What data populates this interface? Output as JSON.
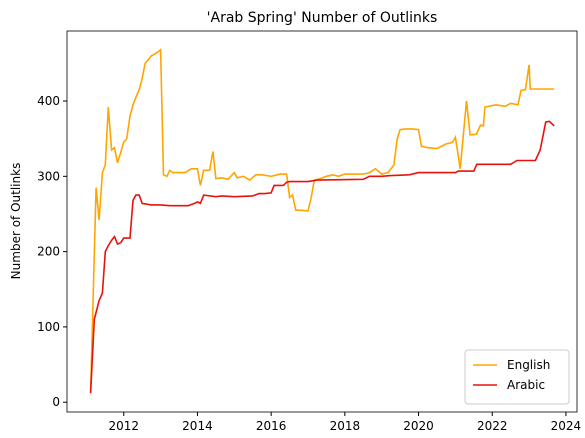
{
  "chart_data": {
    "type": "line",
    "title": "'Arab Spring' Number of Outlinks",
    "y_label": "Number of Outlinks",
    "xlim": [
      2010.46,
      2024.3
    ],
    "xticks": [
      2012,
      2014,
      2016,
      2018,
      2020,
      2022,
      2024
    ],
    "ylim": [
      -13,
      493
    ],
    "yticks": [
      0,
      100,
      200,
      300,
      400
    ],
    "legend": "lower right",
    "series": [
      {
        "name": "English",
        "color": "#ffa500",
        "x": [
          2011.1,
          2011.25,
          2011.33,
          2011.42,
          2011.5,
          2011.58,
          2011.67,
          2011.75,
          2011.83,
          2011.92,
          2012.0,
          2012.08,
          2012.17,
          2012.25,
          2012.33,
          2012.42,
          2012.5,
          2012.58,
          2012.67,
          2012.75,
          2012.83,
          2012.92,
          2013.0,
          2013.08,
          2013.17,
          2013.25,
          2013.33,
          2013.5,
          2013.67,
          2013.83,
          2014.0,
          2014.08,
          2014.17,
          2014.33,
          2014.42,
          2014.5,
          2014.67,
          2014.83,
          2015.0,
          2015.08,
          2015.25,
          2015.42,
          2015.58,
          2015.75,
          2016.0,
          2016.25,
          2016.42,
          2016.5,
          2016.58,
          2016.67,
          2016.83,
          2017.0,
          2017.08,
          2017.17,
          2017.33,
          2017.5,
          2017.67,
          2017.83,
          2018.0,
          2018.25,
          2018.5,
          2018.67,
          2018.83,
          2019.0,
          2019.17,
          2019.33,
          2019.42,
          2019.5,
          2019.67,
          2019.83,
          2020.0,
          2020.08,
          2020.25,
          2020.5,
          2020.75,
          2020.92,
          2021.0,
          2021.13,
          2021.3,
          2021.4,
          2021.57,
          2021.68,
          2021.76,
          2021.8,
          2022.1,
          2022.35,
          2022.5,
          2022.7,
          2022.78,
          2022.9,
          2023.0,
          2023.03,
          2023.68
        ],
        "values": [
          13,
          285,
          242,
          305,
          315,
          392,
          335,
          338,
          318,
          332,
          345,
          350,
          380,
          395,
          405,
          415,
          430,
          450,
          455,
          460,
          462,
          465,
          468,
          302,
          300,
          308,
          305,
          305,
          305,
          310,
          310,
          288,
          308,
          308,
          333,
          297,
          298,
          296,
          305,
          298,
          300,
          295,
          302,
          302,
          300,
          303,
          303,
          272,
          275,
          255,
          255,
          254,
          270,
          295,
          297,
          300,
          302,
          300,
          303,
          303,
          303,
          305,
          310,
          303,
          305,
          315,
          350,
          362,
          363,
          363,
          362,
          340,
          338,
          337,
          343,
          345,
          352,
          310,
          400,
          355,
          356,
          368,
          367,
          392,
          395,
          393,
          397,
          395,
          414,
          415,
          448,
          416,
          416
        ]
      },
      {
        "name": "Arabic",
        "color": "#e8120c",
        "x": [
          2011.1,
          2011.2,
          2011.33,
          2011.42,
          2011.5,
          2011.58,
          2011.67,
          2011.75,
          2011.83,
          2011.92,
          2012.0,
          2012.17,
          2012.25,
          2012.33,
          2012.42,
          2012.5,
          2012.75,
          2013.0,
          2013.25,
          2013.75,
          2013.92,
          2014.0,
          2014.08,
          2014.17,
          2014.5,
          2014.67,
          2015.0,
          2015.5,
          2015.67,
          2015.83,
          2016.0,
          2016.08,
          2016.33,
          2016.42,
          2016.5,
          2017.0,
          2017.25,
          2018.5,
          2018.67,
          2019.0,
          2019.25,
          2019.75,
          2020.0,
          2021.0,
          2021.08,
          2021.5,
          2021.58,
          2022.5,
          2022.67,
          2023.17,
          2023.3,
          2023.45,
          2023.55,
          2023.68
        ],
        "values": [
          12,
          110,
          135,
          145,
          200,
          208,
          215,
          220,
          210,
          212,
          218,
          218,
          268,
          275,
          275,
          264,
          262,
          262,
          261,
          261,
          264,
          266,
          264,
          275,
          273,
          274,
          273,
          274,
          277,
          277,
          278,
          288,
          288,
          292,
          293,
          293,
          295,
          296,
          300,
          300,
          301,
          302,
          305,
          305,
          307,
          307,
          316,
          316,
          321,
          321,
          335,
          372,
          373,
          367
        ]
      }
    ]
  }
}
